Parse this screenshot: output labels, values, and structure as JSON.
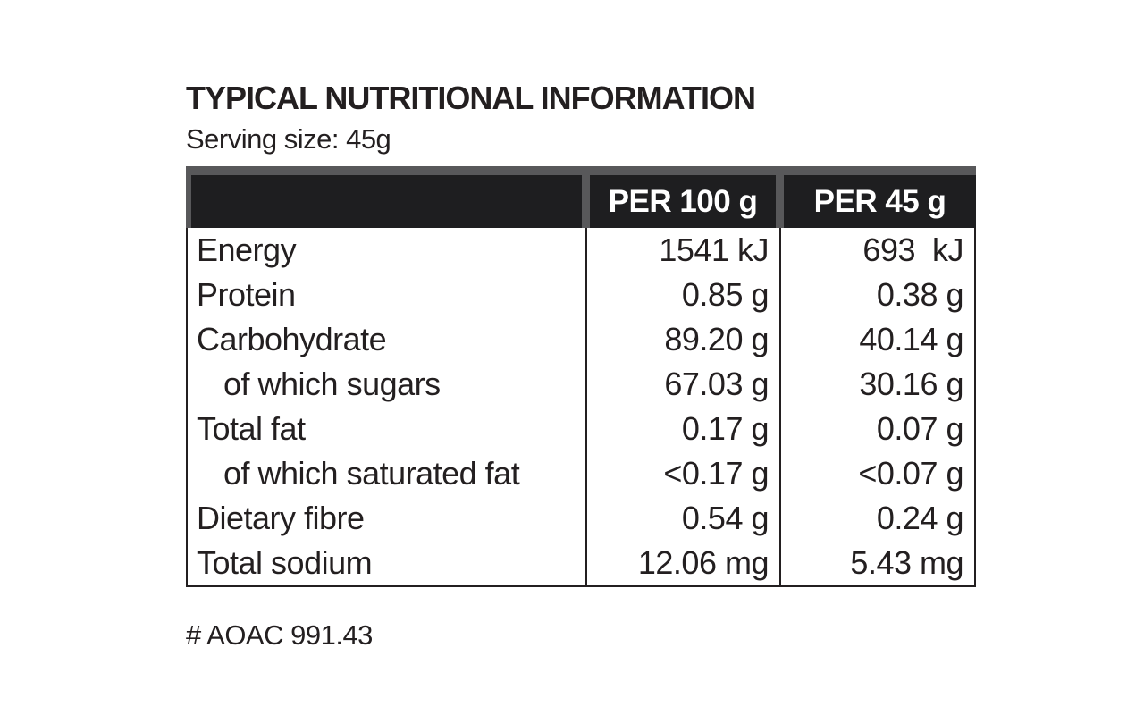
{
  "page": {
    "title": "TYPICAL NUTRITIONAL INFORMATION",
    "serving_size": "Serving size: 45g",
    "footnote": "# AOAC 991.43"
  },
  "table": {
    "columns": [
      "",
      "PER 100 g",
      "PER 45 g"
    ],
    "rows": [
      {
        "label": "Energy",
        "per100": "1541 kJ",
        "per45": "693  kJ",
        "indent": false
      },
      {
        "label": "Protein",
        "per100": "0.85 g",
        "per45": "0.38 g",
        "indent": false
      },
      {
        "label": "Carbohydrate",
        "per100": "89.20 g",
        "per45": "40.14 g",
        "indent": false
      },
      {
        "label": "of which sugars",
        "per100": "67.03 g",
        "per45": "30.16 g",
        "indent": true
      },
      {
        "label": "Total fat",
        "per100": "0.17 g",
        "per45": "0.07 g",
        "indent": false
      },
      {
        "label": "of which saturated fat",
        "per100": "<0.17 g",
        "per45": "<0.07 g",
        "indent": true
      },
      {
        "label": "Dietary fibre",
        "per100": "0.54 g",
        "per45": "0.24 g",
        "indent": false
      },
      {
        "label": "Total sodium",
        "per100": "12.06 mg",
        "per45": "5.43 mg",
        "indent": false
      }
    ],
    "colors": {
      "header_bg": "#1e1e20",
      "header_text": "#ffffff",
      "header_trim": "#58585a",
      "body_text": "#231f20",
      "border": "#231f20",
      "background": "#ffffff"
    }
  }
}
